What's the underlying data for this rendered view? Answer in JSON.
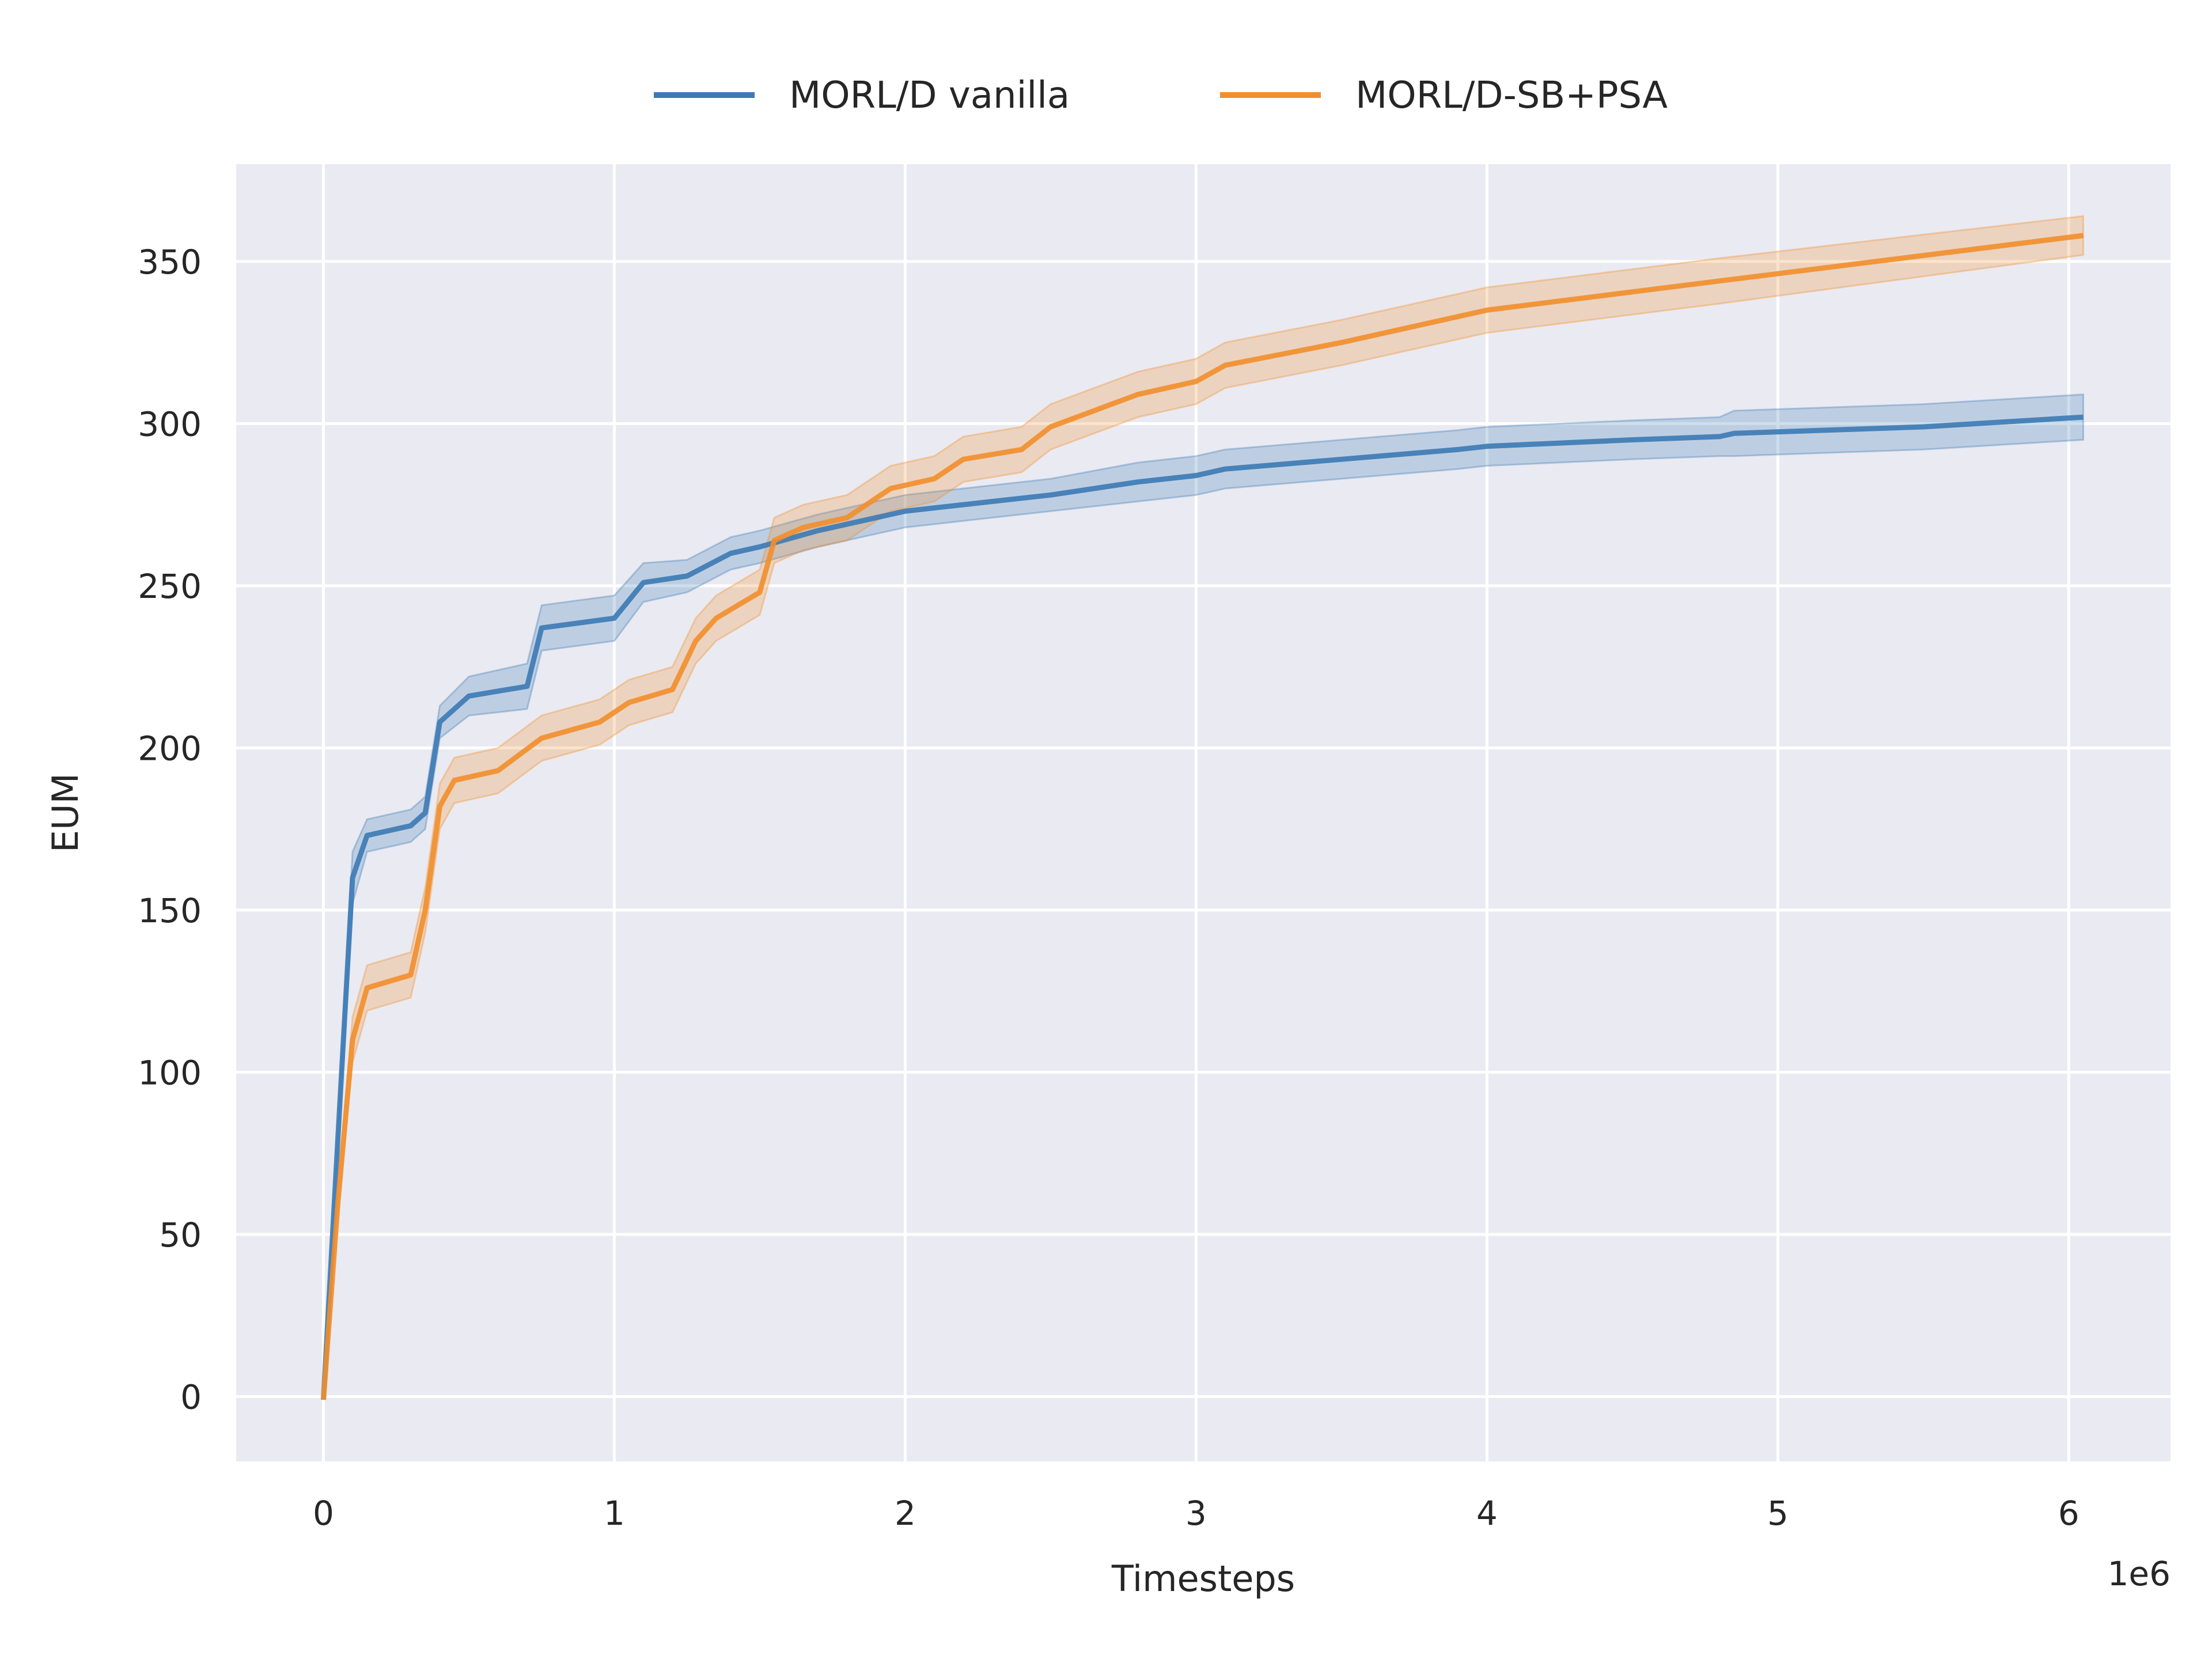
{
  "chart_data": {
    "type": "line",
    "title": "",
    "xlabel": "Timesteps",
    "ylabel": "EUM",
    "x_offset_label": "1e6",
    "xlim": [
      -0.3,
      6.35
    ],
    "ylim": [
      -20,
      380
    ],
    "x_ticks": [
      0,
      1,
      2,
      3,
      4,
      5,
      6
    ],
    "x_tick_labels": [
      "0",
      "1",
      "2",
      "3",
      "4",
      "5",
      "6"
    ],
    "y_ticks": [
      0,
      50,
      100,
      150,
      200,
      250,
      300,
      350
    ],
    "y_tick_labels": [
      "0",
      "50",
      "100",
      "150",
      "200",
      "250",
      "300",
      "350"
    ],
    "grid": true,
    "legend_position": "top-center",
    "background_color": "#eaeaf2",
    "series": [
      {
        "name": "MORL/D vanilla",
        "color": "#3b7ab5",
        "band_halfwidth": [
          0,
          3,
          8,
          5,
          5,
          5,
          5,
          6,
          7,
          7,
          7,
          6,
          5,
          5,
          5,
          5,
          5,
          5,
          5,
          5,
          6,
          6,
          6,
          6,
          6,
          6,
          6,
          6,
          7,
          7,
          7
        ],
        "x": [
          0,
          0.05,
          0.1,
          0.15,
          0.3,
          0.35,
          0.4,
          0.5,
          0.7,
          0.75,
          1.0,
          1.1,
          1.25,
          1.4,
          1.5,
          1.7,
          1.9,
          2.0,
          2.2,
          2.5,
          2.8,
          3.0,
          3.1,
          3.5,
          3.9,
          4.0,
          4.5,
          4.8,
          4.85,
          5.5,
          6.05
        ],
        "values": [
          -1,
          80,
          160,
          173,
          176,
          180,
          208,
          216,
          219,
          237,
          240,
          251,
          253,
          260,
          262,
          267,
          271,
          273,
          275,
          278,
          282,
          284,
          286,
          289,
          292,
          293,
          295,
          296,
          297,
          299,
          302
        ]
      },
      {
        "name": "MORL/D-SB+PSA",
        "color": "#f28e2b",
        "band_halfwidth": [
          0,
          3,
          7,
          7,
          7,
          7,
          7,
          7,
          7,
          7,
          7,
          7,
          7,
          7,
          7,
          7,
          7,
          7,
          7,
          7,
          7,
          7,
          7,
          7,
          7,
          7,
          7,
          7,
          7,
          7,
          6
        ],
        "x": [
          0,
          0.05,
          0.1,
          0.15,
          0.3,
          0.35,
          0.4,
          0.45,
          0.6,
          0.75,
          0.95,
          1.05,
          1.2,
          1.28,
          1.35,
          1.5,
          1.55,
          1.65,
          1.8,
          1.95,
          2.1,
          2.2,
          2.4,
          2.5,
          2.8,
          3.0,
          3.1,
          3.5,
          4.0,
          4.8,
          6.05
        ],
        "values": [
          -1,
          60,
          110,
          126,
          130,
          150,
          182,
          190,
          193,
          203,
          208,
          214,
          218,
          233,
          240,
          248,
          264,
          268,
          271,
          280,
          283,
          289,
          292,
          299,
          309,
          313,
          318,
          325,
          335,
          344,
          358
        ]
      }
    ]
  }
}
